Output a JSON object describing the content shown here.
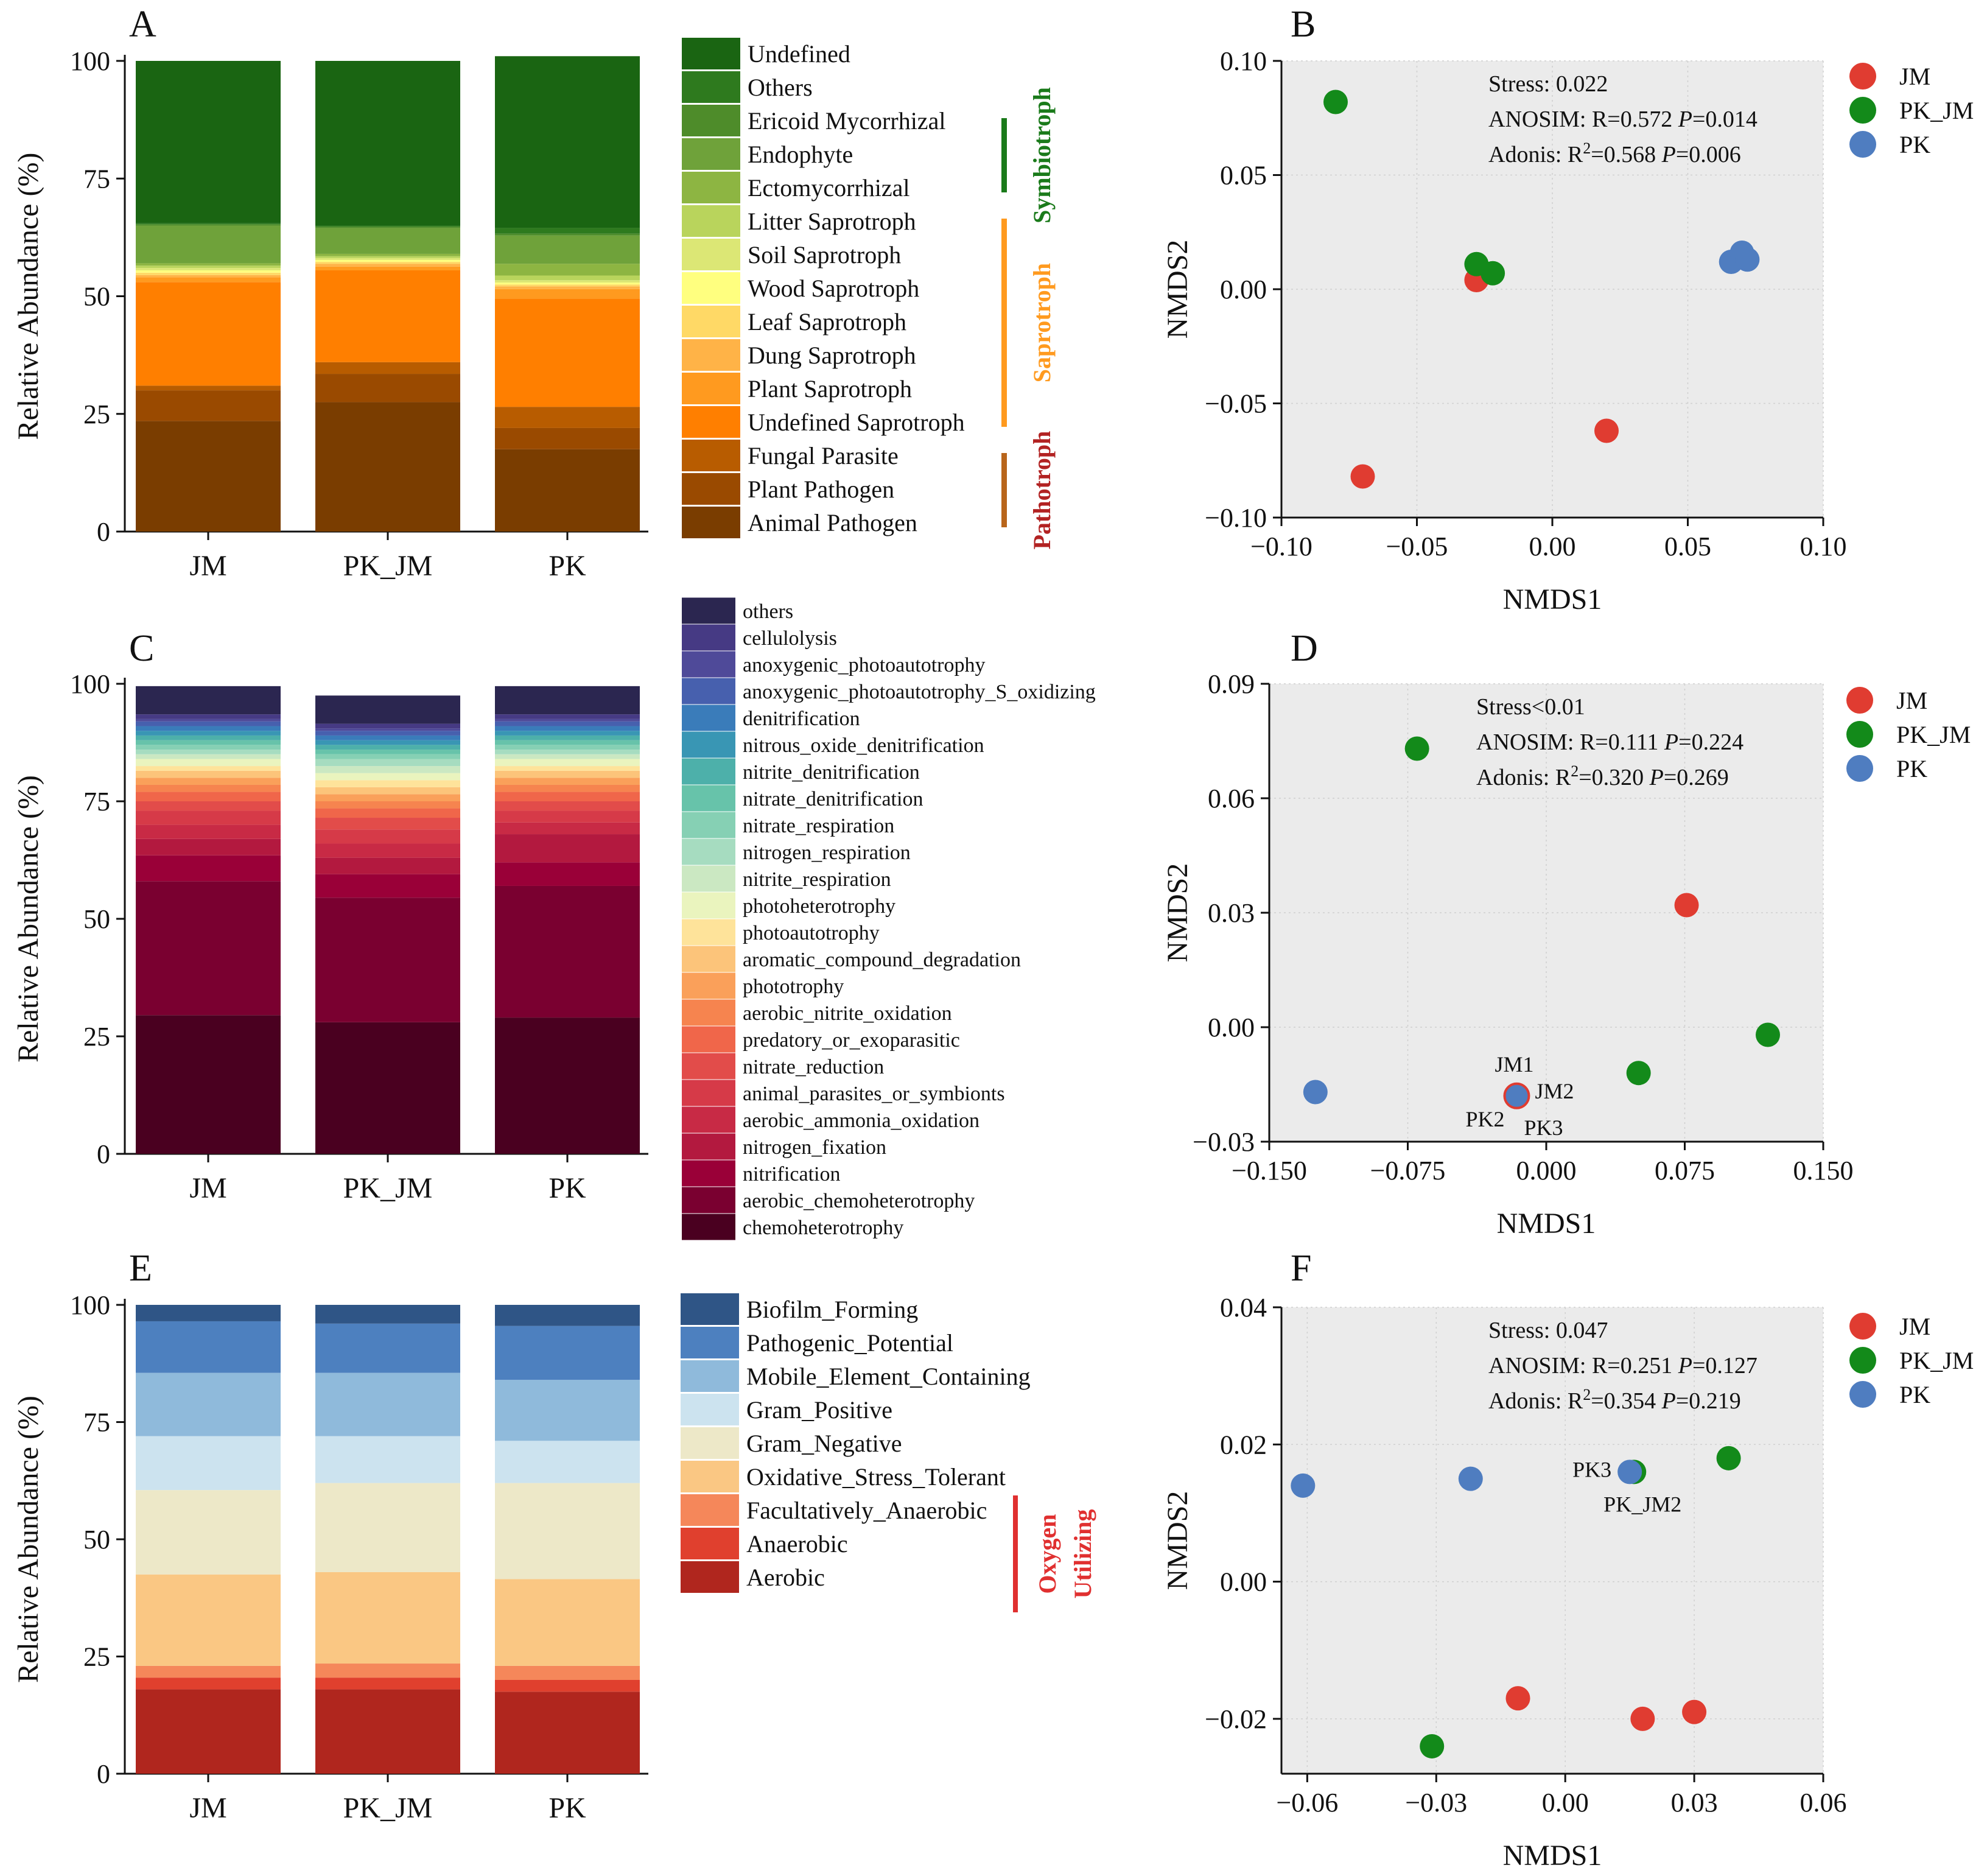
{
  "chart_data": [
    {
      "panel": "A",
      "type": "bar",
      "stacked": true,
      "ylabel": "Relative Abundance (%)",
      "ylim": [
        0,
        100
      ],
      "yticks": [
        0,
        25,
        50,
        75,
        100
      ],
      "categories": [
        "JM",
        "PK_JM",
        "PK"
      ],
      "series": [
        {
          "name": "Animal Pathogen",
          "color": "#7A3D00",
          "values": [
            23.5,
            27.5,
            17.5
          ]
        },
        {
          "name": "Plant Pathogen",
          "color": "#9A4A00",
          "values": [
            6.5,
            6.0,
            4.5
          ]
        },
        {
          "name": "Fungal Parasite",
          "color": "#B85C00",
          "values": [
            1.0,
            2.5,
            4.5
          ]
        },
        {
          "name": "Undefined Saprotroph",
          "color": "#FF7F00",
          "values": [
            22.0,
            19.5,
            23.0
          ]
        },
        {
          "name": "Plant Saprotroph",
          "color": "#FF9A1F",
          "values": [
            1.0,
            0.8,
            2.0
          ]
        },
        {
          "name": "Dung Saprotroph",
          "color": "#FFB347",
          "values": [
            0.5,
            0.6,
            0.6
          ]
        },
        {
          "name": "Leaf Saprotroph",
          "color": "#FFD966",
          "values": [
            0.5,
            0.4,
            0.4
          ]
        },
        {
          "name": "Wood Saprotroph",
          "color": "#FFFF7F",
          "values": [
            0.5,
            0.4,
            0.4
          ]
        },
        {
          "name": "Soil Saprotroph",
          "color": "#DCE775",
          "values": [
            0.5,
            0.4,
            0.5
          ]
        },
        {
          "name": "Litter Saprotroph",
          "color": "#B9D45C",
          "values": [
            0.5,
            0.4,
            1.0
          ]
        },
        {
          "name": "Ectomycorrhizal",
          "color": "#8DB542",
          "values": [
            0.5,
            0.5,
            2.5
          ]
        },
        {
          "name": "Endophyte",
          "color": "#6FA23A",
          "values": [
            8.0,
            5.5,
            6.0
          ]
        },
        {
          "name": "Ericoid Mycorrhizal",
          "color": "#4E8C2A",
          "values": [
            0.3,
            0.3,
            0.4
          ]
        },
        {
          "name": "Others",
          "color": "#2E7A1E",
          "values": [
            0.2,
            0.2,
            1.2
          ]
        },
        {
          "name": "Undefined",
          "color": "#1A6512",
          "values": [
            34.5,
            35.0,
            36.5
          ]
        }
      ],
      "legend_order": [
        "Undefined",
        "Others",
        "Ericoid Mycorrhizal",
        "Endophyte",
        "Ectomycorrhizal",
        "Litter Saprotroph",
        "Soil Saprotroph",
        "Wood Saprotroph",
        "Leaf Saprotroph",
        "Dung Saprotroph",
        "Plant Saprotroph",
        "Undefined Saprotroph",
        "Fungal Parasite",
        "Plant Pathogen",
        "Animal Pathogen"
      ],
      "groups": [
        {
          "label": "Symbiotroph",
          "color": "#1A7A1A",
          "from": "Ericoid Mycorrhizal",
          "to": "Ectomycorrhizal"
        },
        {
          "label": "Saprotroph",
          "color": "#FF9A1F",
          "from": "Litter Saprotroph",
          "to": "Undefined Saprotroph"
        },
        {
          "label": "Pathotroph",
          "color": "#B22222",
          "bar_color": "#B8651B",
          "from": "Fungal Parasite",
          "to": "Animal Pathogen"
        }
      ]
    },
    {
      "panel": "B",
      "type": "scatter",
      "xlabel": "NMDS1",
      "ylabel": "NMDS2",
      "xlim": [
        -0.1,
        0.1
      ],
      "ylim": [
        -0.1,
        0.1
      ],
      "xticks": [
        -0.1,
        -0.05,
        0.0,
        0.05,
        0.1
      ],
      "yticks": [
        -0.1,
        -0.05,
        0.0,
        0.05,
        0.1
      ],
      "tick_format": 2,
      "stats": [
        {
          "label": "Stress: 0.022"
        },
        {
          "pre": "ANOSIM: R=0.572 ",
          "p": "P",
          "post": "=0.014"
        },
        {
          "pre": "Adonis: R",
          "sup": "2",
          "mid": "=0.568 ",
          "p": "P",
          "post": "=0.006"
        }
      ],
      "series": [
        {
          "name": "JM",
          "color": "#E03C31",
          "points": [
            [
              -0.028,
              0.004
            ],
            [
              -0.07,
              -0.082
            ],
            [
              0.02,
              -0.062
            ]
          ]
        },
        {
          "name": "PK_JM",
          "color": "#138A1A",
          "points": [
            [
              -0.08,
              0.082
            ],
            [
              -0.028,
              0.011
            ],
            [
              -0.022,
              0.007
            ]
          ]
        },
        {
          "name": "PK",
          "color": "#4F7DC0",
          "points": [
            [
              0.066,
              0.012
            ],
            [
              0.07,
              0.016
            ],
            [
              0.072,
              0.013
            ]
          ]
        }
      ],
      "point_labels": []
    },
    {
      "panel": "C",
      "type": "bar",
      "stacked": true,
      "ylabel": "Relative Abundance (%)",
      "ylim": [
        0,
        100
      ],
      "yticks": [
        0,
        25,
        50,
        75,
        100
      ],
      "categories": [
        "JM",
        "PK_JM",
        "PK"
      ],
      "series": [
        {
          "name": "chemoheterotrophy",
          "color": "#4A0020",
          "values": [
            29.5,
            28.0,
            29.0
          ]
        },
        {
          "name": "aerobic_chemoheterotrophy",
          "color": "#7A0030",
          "values": [
            28.5,
            26.5,
            28.0
          ]
        },
        {
          "name": "nitrification",
          "color": "#9A0038",
          "values": [
            5.5,
            5.0,
            5.0
          ]
        },
        {
          "name": "nitrogen_fixation",
          "color": "#B3193F",
          "values": [
            3.5,
            3.5,
            6.0
          ]
        },
        {
          "name": "aerobic_ammonia_oxidation",
          "color": "#C82A45",
          "values": [
            3.0,
            3.0,
            2.5
          ]
        },
        {
          "name": "animal_parasites_or_symbionts",
          "color": "#D63A48",
          "values": [
            3.0,
            3.0,
            2.5
          ]
        },
        {
          "name": "nitrate_reduction",
          "color": "#E24C4A",
          "values": [
            2.0,
            2.5,
            2.0
          ]
        },
        {
          "name": "predatory_or_exoparasitic",
          "color": "#F0664A",
          "values": [
            2.0,
            2.0,
            2.0
          ]
        },
        {
          "name": "aerobic_nitrite_oxidation",
          "color": "#F6844F",
          "values": [
            1.5,
            1.5,
            1.5
          ]
        },
        {
          "name": "phototrophy",
          "color": "#FAA05A",
          "values": [
            1.5,
            1.5,
            1.5
          ]
        },
        {
          "name": "aromatic_compound_degradation",
          "color": "#FCC47A",
          "values": [
            1.5,
            1.5,
            1.5
          ]
        },
        {
          "name": "photoautotrophy",
          "color": "#FEE39A",
          "values": [
            1.0,
            1.5,
            1.0
          ]
        },
        {
          "name": "photoheterotrophy",
          "color": "#EAF4BE",
          "values": [
            1.5,
            1.5,
            1.5
          ]
        },
        {
          "name": "nitrite_respiration",
          "color": "#CBE8C2",
          "values": [
            1.0,
            1.5,
            1.0
          ]
        },
        {
          "name": "nitrogen_respiration",
          "color": "#A6DCC0",
          "values": [
            1.0,
            1.5,
            1.0
          ]
        },
        {
          "name": "nitrate_respiration",
          "color": "#86D0B4",
          "values": [
            1.0,
            1.0,
            1.0
          ]
        },
        {
          "name": "nitrate_denitrification",
          "color": "#67C3AA",
          "values": [
            1.0,
            1.0,
            1.0
          ]
        },
        {
          "name": "nitrite_denitrification",
          "color": "#4DB0AA",
          "values": [
            1.0,
            1.0,
            1.0
          ]
        },
        {
          "name": "nitrous_oxide_denitrification",
          "color": "#3996B4",
          "values": [
            1.0,
            1.0,
            1.0
          ]
        },
        {
          "name": "denitrification",
          "color": "#3A7CBA",
          "values": [
            1.0,
            1.0,
            1.0
          ]
        },
        {
          "name": "anoxygenic_photoautotrophy_S_oxidizing",
          "color": "#4760AE",
          "values": [
            1.0,
            1.0,
            1.0
          ]
        },
        {
          "name": "anoxygenic_photoautotrophy",
          "color": "#4F4A99",
          "values": [
            0.5,
            0.5,
            0.5
          ]
        },
        {
          "name": "cellulolysis",
          "color": "#463A84",
          "values": [
            1.0,
            1.0,
            1.0
          ]
        },
        {
          "name": "others",
          "color": "#2B2650",
          "values": [
            6.0,
            6.0,
            6.0
          ]
        }
      ],
      "legend_order": [
        "others",
        "cellulolysis",
        "anoxygenic_photoautotrophy",
        "anoxygenic_photoautotrophy_S_oxidizing",
        "denitrification",
        "nitrous_oxide_denitrification",
        "nitrite_denitrification",
        "nitrate_denitrification",
        "nitrate_respiration",
        "nitrogen_respiration",
        "nitrite_respiration",
        "photoheterotrophy",
        "photoautotrophy",
        "aromatic_compound_degradation",
        "phototrophy",
        "aerobic_nitrite_oxidation",
        "predatory_or_exoparasitic",
        "nitrate_reduction",
        "animal_parasites_or_symbionts",
        "aerobic_ammonia_oxidation",
        "nitrogen_fixation",
        "nitrification",
        "aerobic_chemoheterotrophy",
        "chemoheterotrophy"
      ],
      "groups": []
    },
    {
      "panel": "D",
      "type": "scatter",
      "xlabel": "NMDS1",
      "ylabel": "NMDS2",
      "xlim": [
        -0.15,
        0.15
      ],
      "ylim": [
        -0.03,
        0.09
      ],
      "xticks": [
        -0.15,
        -0.075,
        0.0,
        0.075,
        0.15
      ],
      "yticks": [
        -0.03,
        0.0,
        0.03,
        0.06,
        0.09
      ],
      "tick_format": 3,
      "tick_format_y": 2,
      "stats": [
        {
          "label": "Stress<0.01"
        },
        {
          "pre": "ANOSIM: R=0.111 ",
          "p": "P",
          "post": "=0.224"
        },
        {
          "pre": "Adonis: R",
          "sup": "2",
          "mid": "=0.320 ",
          "p": "P",
          "post": "=0.269"
        }
      ],
      "series": [
        {
          "name": "JM",
          "color": "#E03C31",
          "points": [
            [
              0.076,
              0.032
            ],
            [
              -0.016,
              -0.018
            ],
            [
              -0.016,
              -0.018
            ]
          ]
        },
        {
          "name": "PK_JM",
          "color": "#138A1A",
          "points": [
            [
              -0.07,
              0.073
            ],
            [
              0.05,
              -0.012
            ],
            [
              0.12,
              -0.002
            ]
          ]
        },
        {
          "name": "PK",
          "color": "#4F7DC0",
          "points": [
            [
              -0.125,
              -0.017
            ],
            [
              -0.016,
              -0.018
            ],
            [
              -0.016,
              -0.018
            ]
          ]
        }
      ],
      "point_labels": [
        {
          "text": "JM1",
          "x": -0.016,
          "y": -0.018,
          "pos": "above"
        },
        {
          "text": "JM2",
          "x": -0.016,
          "y": -0.018,
          "pos": "right"
        },
        {
          "text": "PK2",
          "x": -0.016,
          "y": -0.018,
          "pos": "below-left"
        },
        {
          "text": "PK3",
          "x": -0.016,
          "y": -0.018,
          "pos": "below-right"
        }
      ]
    },
    {
      "panel": "E",
      "type": "bar",
      "stacked": true,
      "ylabel": "Relative Abundance (%)",
      "ylim": [
        0,
        100
      ],
      "yticks": [
        0,
        25,
        50,
        75,
        100
      ],
      "categories": [
        "JM",
        "PK_JM",
        "PK"
      ],
      "series": [
        {
          "name": "Aerobic",
          "color": "#B0261E",
          "values": [
            18.0,
            18.0,
            17.5
          ]
        },
        {
          "name": "Anaerobic",
          "color": "#E0402E",
          "values": [
            2.5,
            2.5,
            2.5
          ]
        },
        {
          "name": "Facultatively_Anaerobic",
          "color": "#F5875A",
          "values": [
            2.5,
            3.0,
            3.0
          ]
        },
        {
          "name": "Oxidative_Stress_Tolerant",
          "color": "#FAC783",
          "values": [
            19.5,
            19.5,
            18.5
          ]
        },
        {
          "name": "Gram_Negative",
          "color": "#EDE8C8",
          "values": [
            18.0,
            19.0,
            20.5
          ]
        },
        {
          "name": "Gram_Positive",
          "color": "#CCE3EF",
          "values": [
            11.5,
            10.0,
            9.0
          ]
        },
        {
          "name": "Mobile_Element_Containing",
          "color": "#8FBADB",
          "values": [
            13.5,
            13.5,
            13.0
          ]
        },
        {
          "name": "Pathogenic_Potential",
          "color": "#4D80BF",
          "values": [
            11.0,
            10.5,
            11.5
          ]
        },
        {
          "name": "Biofilm_Forming",
          "color": "#2F5586",
          "values": [
            3.5,
            4.0,
            4.5
          ]
        }
      ],
      "legend_order": [
        "Biofilm_Forming",
        "Pathogenic_Potential",
        "Mobile_Element_Containing",
        "Gram_Positive",
        "Gram_Negative",
        "Oxidative_Stress_Tolerant",
        "Facultatively_Anaerobic",
        "Anaerobic",
        "Aerobic"
      ],
      "groups": [
        {
          "label": "Oxygen Utilizing",
          "lines": [
            "Oxygen",
            "Utilizing"
          ],
          "color": "#E03030",
          "from": "Facultatively_Anaerobic",
          "to": "Aerobic"
        }
      ]
    },
    {
      "panel": "F",
      "type": "scatter",
      "xlabel": "NMDS1",
      "ylabel": "NMDS2",
      "xlim": [
        -0.066,
        0.06
      ],
      "ylim": [
        -0.028,
        0.04
      ],
      "xticks": [
        -0.06,
        -0.03,
        0.0,
        0.03,
        0.06
      ],
      "yticks": [
        -0.02,
        0.0,
        0.02,
        0.04
      ],
      "tick_format": 2,
      "stats": [
        {
          "label": "Stress: 0.047"
        },
        {
          "pre": "ANOSIM: R=0.251 ",
          "p": "P",
          "post": "=0.127"
        },
        {
          "pre": "Adonis: R",
          "sup": "2",
          "mid": "=0.354 ",
          "p": "P",
          "post": "=0.219"
        }
      ],
      "series": [
        {
          "name": "JM",
          "color": "#E03C31",
          "points": [
            [
              -0.011,
              -0.017
            ],
            [
              0.018,
              -0.02
            ],
            [
              0.03,
              -0.019
            ]
          ]
        },
        {
          "name": "PK_JM",
          "color": "#138A1A",
          "points": [
            [
              -0.031,
              -0.024
            ],
            [
              0.038,
              0.018
            ],
            [
              0.016,
              0.016
            ]
          ]
        },
        {
          "name": "PK",
          "color": "#4F7DC0",
          "points": [
            [
              -0.061,
              0.014
            ],
            [
              -0.022,
              0.015
            ],
            [
              0.015,
              0.016
            ]
          ]
        }
      ],
      "point_labels": [
        {
          "text": "PK3",
          "x": 0.015,
          "y": 0.016,
          "pos": "left"
        },
        {
          "text": "PK_JM2",
          "x": 0.016,
          "y": 0.016,
          "pos": "below"
        }
      ]
    }
  ]
}
